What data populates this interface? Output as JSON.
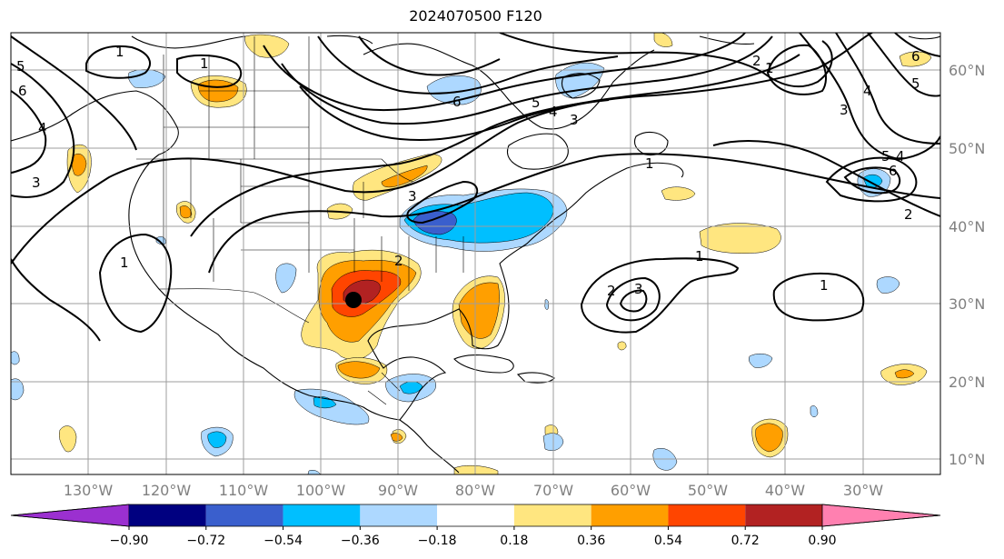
{
  "title": "2024070500 F120",
  "map": {
    "lat_ticks": [
      "60°N",
      "50°N",
      "40°N",
      "30°N",
      "20°N",
      "10°N"
    ],
    "lon_ticks": [
      "130°W",
      "120°W",
      "110°W",
      "100°W",
      "90°W",
      "80°W",
      "70°W",
      "60°W",
      "50°W",
      "40°W",
      "30°W"
    ],
    "contour_labels": [
      "1",
      "1",
      "1",
      "1",
      "1",
      "1",
      "1",
      "2",
      "2",
      "2",
      "2",
      "3",
      "3",
      "3",
      "3",
      "3",
      "4",
      "4",
      "4",
      "4",
      "5",
      "5",
      "5",
      "5",
      "6",
      "6",
      "6",
      "6"
    ]
  },
  "colorbar": {
    "colors": [
      "#9b30d0",
      "#000080",
      "#3a5fcd",
      "#00bfff",
      "#add8ff",
      "#ffffff",
      "#ffe680",
      "#ff9f00",
      "#ff4500",
      "#b22222",
      "#ff80b0"
    ],
    "tick_labels": [
      "−0.90",
      "−0.72",
      "−0.54",
      "−0.36",
      "−0.18",
      "0.18",
      "0.36",
      "0.54",
      "0.72",
      "0.90"
    ]
  }
}
